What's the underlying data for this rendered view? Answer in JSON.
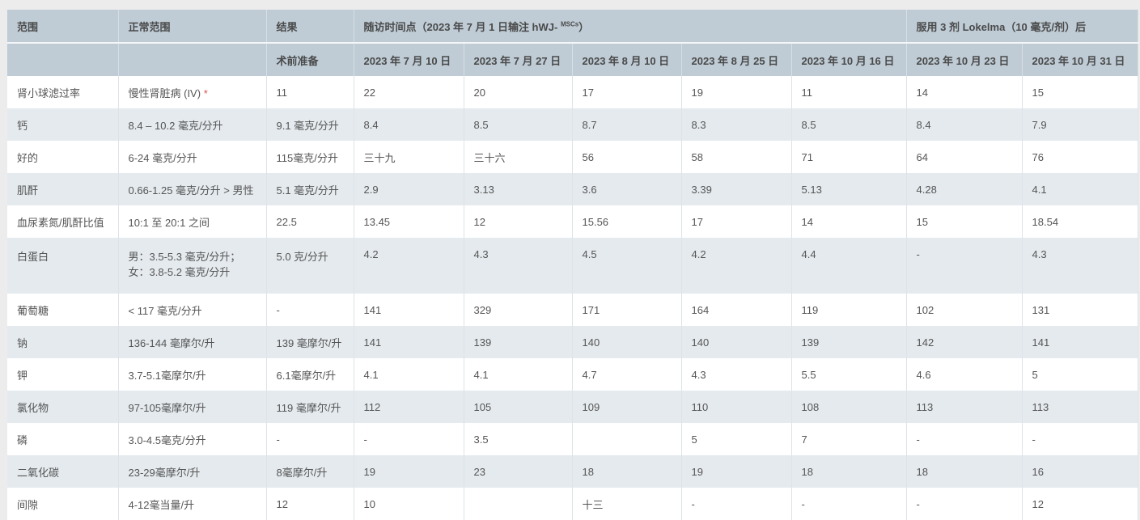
{
  "header": {
    "col_range": "范围",
    "col_normal": "正常范围",
    "col_result": "结果",
    "followup": "随访时间点（2023 年 7 月 1 日输注 hWJ- ",
    "followup_sup": "MSCs",
    "followup_end": "）",
    "after": "服用 3 剂 Lokelma（10 毫克/剂）后",
    "preop": "术前准备",
    "dates": [
      "2023 年 7 月 10 日",
      "2023 年 7 月 27 日",
      "2023 年 8 月 10 日",
      "2023 年 8 月 25 日",
      "2023 年 10 月 16 日",
      "2023 年 10 月 23 日",
      "2023 年 10 月 31 日"
    ]
  },
  "rows": [
    {
      "name": "肾小球滤过率",
      "normal": "慢性肾脏病 (IV)",
      "star": "*",
      "pre": "11",
      "vals": [
        "22",
        "20",
        "17",
        "19",
        "11",
        "14",
        "15"
      ]
    },
    {
      "name": "钙",
      "normal": "8.4 – 10.2 毫克/分升",
      "pre": "9.1 毫克/分升",
      "vals": [
        "8.4",
        "8.5",
        "8.7",
        "8.3",
        "8.5",
        "8.4",
        "7.9"
      ]
    },
    {
      "name": "好的",
      "normal": "6-24 毫克/分升",
      "pre": "115毫克/分升",
      "vals": [
        "三十九",
        "三十六",
        "56",
        "58",
        "71",
        "64",
        "76"
      ]
    },
    {
      "name": "肌酐",
      "normal": "0.66-1.25 毫克/分升 > 男性",
      "pre": "5.1 毫克/分升",
      "vals": [
        "2.9",
        "3.13",
        "3.6",
        "3.39",
        "5.13",
        "4.28",
        "4.1"
      ]
    },
    {
      "name": "血尿素氮/肌酐比值",
      "normal": "10:1 至 20:1 之间",
      "pre": "22.5",
      "vals": [
        "13.45",
        "12",
        "15.56",
        "17",
        "14",
        "15",
        "18.54"
      ]
    },
    {
      "name": "白蛋白",
      "normal": "男：3.5-5.3 毫克/分升；",
      "normal2": "女：3.8-5.2 毫克/分升",
      "pre": "5.0 克/分升",
      "vals": [
        "4.2",
        "4.3",
        "4.5",
        "4.2",
        "4.4",
        "-",
        "4.3"
      ]
    },
    {
      "name": "葡萄糖",
      "normal": "< 117 毫克/分升",
      "pre": "-",
      "vals": [
        "141",
        "329",
        "171",
        "164",
        "119",
        "102",
        "131"
      ]
    },
    {
      "name": "钠",
      "normal": "136-144 毫摩尔/升",
      "pre": "139 毫摩尔/升",
      "vals": [
        "141",
        "139",
        "140",
        "140",
        "139",
        "142",
        "141"
      ]
    },
    {
      "name": "钾",
      "normal": "3.7-5.1毫摩尔/升",
      "pre": "6.1毫摩尔/升",
      "vals": [
        "4.1",
        "4.1",
        "4.7",
        "4.3",
        "5.5",
        "4.6",
        "5"
      ]
    },
    {
      "name": "氯化物",
      "normal": "97-105毫摩尔/升",
      "pre": "119 毫摩尔/升",
      "vals": [
        "112",
        "105",
        "109",
        "110",
        "108",
        "113",
        "113"
      ]
    },
    {
      "name": "磷",
      "normal": "3.0-4.5毫克/分升",
      "pre": "-",
      "vals": [
        "-",
        "3.5",
        "",
        "5",
        "7",
        "-",
        "-"
      ]
    },
    {
      "name": "二氧化碳",
      "normal": "23-29毫摩尔/升",
      "pre": "8毫摩尔/升",
      "vals": [
        "19",
        "23",
        "18",
        "19",
        "18",
        "18",
        "16"
      ]
    },
    {
      "name": "间隙",
      "normal": "4-12毫当量/升",
      "pre": "12",
      "vals": [
        "10",
        "",
        "十三",
        "-",
        "-",
        "-",
        "12"
      ]
    }
  ]
}
